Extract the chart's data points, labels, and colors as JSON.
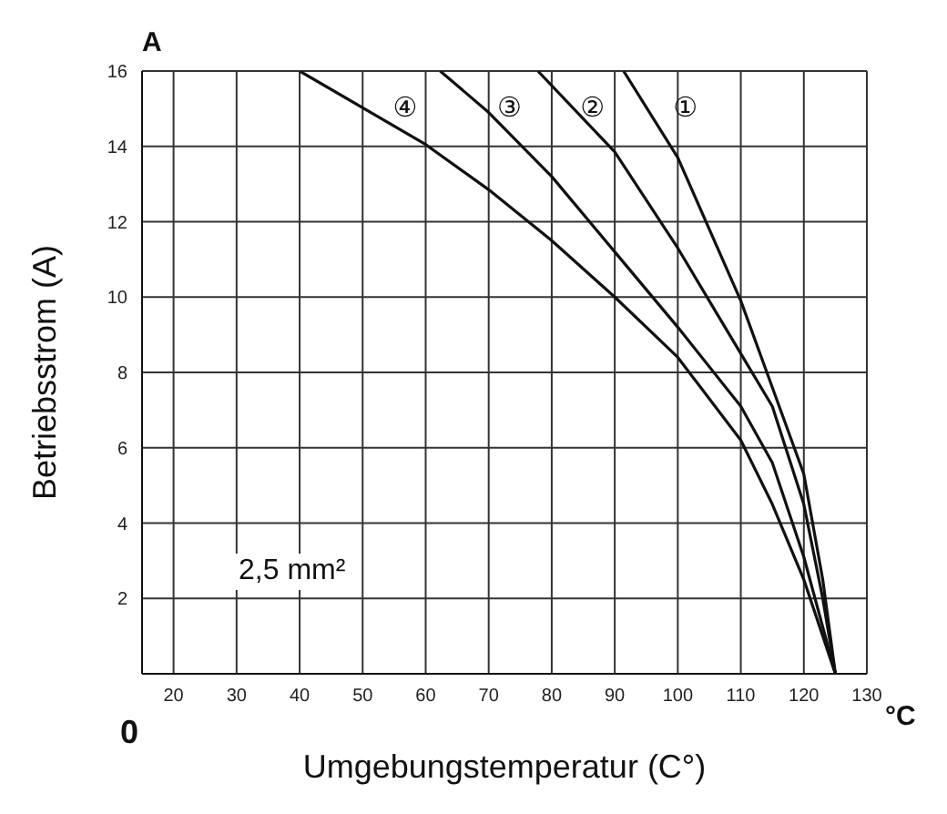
{
  "chart_data": {
    "type": "line",
    "xlabel": "Umgebungstemperatur (C°)",
    "ylabel": "Betriebsstrom (A)",
    "xlim": [
      15,
      130
    ],
    "xticks": [
      20,
      30,
      40,
      50,
      60,
      70,
      80,
      90,
      100,
      110,
      120,
      130
    ],
    "ylim": [
      0,
      16
    ],
    "yticks": [
      {
        "value": 0,
        "label": null
      },
      2,
      4,
      6,
      8,
      10,
      12,
      14,
      16
    ],
    "grid": true,
    "marker": "none",
    "line_style": "solid",
    "series": [
      {
        "name": "①",
        "color": "#111111",
        "x": [
          91.4,
          100,
          110,
          115,
          120,
          123,
          125
        ],
        "values": [
          16,
          13.7,
          9.9,
          7.6,
          5.3,
          2.5,
          0
        ]
      },
      {
        "name": "②",
        "color": "#111111",
        "x": [
          77.8,
          90,
          100,
          110,
          115,
          120,
          123,
          125
        ],
        "values": [
          16,
          13.85,
          11.3,
          8.5,
          7.1,
          4.5,
          2,
          0
        ]
      },
      {
        "name": "③",
        "color": "#111111",
        "x": [
          62.3,
          70,
          80,
          90,
          100,
          110,
          115,
          120,
          125
        ],
        "values": [
          16,
          14.9,
          13.2,
          11.2,
          9.2,
          7.1,
          5.6,
          3.1,
          0
        ]
      },
      {
        "name": "④",
        "color": "#111111",
        "x": [
          40,
          60,
          70,
          80,
          90,
          100,
          110,
          115,
          120,
          125
        ],
        "values": [
          16,
          14.05,
          12.85,
          11.5,
          10,
          8.4,
          6.2,
          4.5,
          2.5,
          0
        ]
      }
    ],
    "annotations": [
      "A",
      "°C",
      "0",
      "2,5 mm²"
    ]
  }
}
